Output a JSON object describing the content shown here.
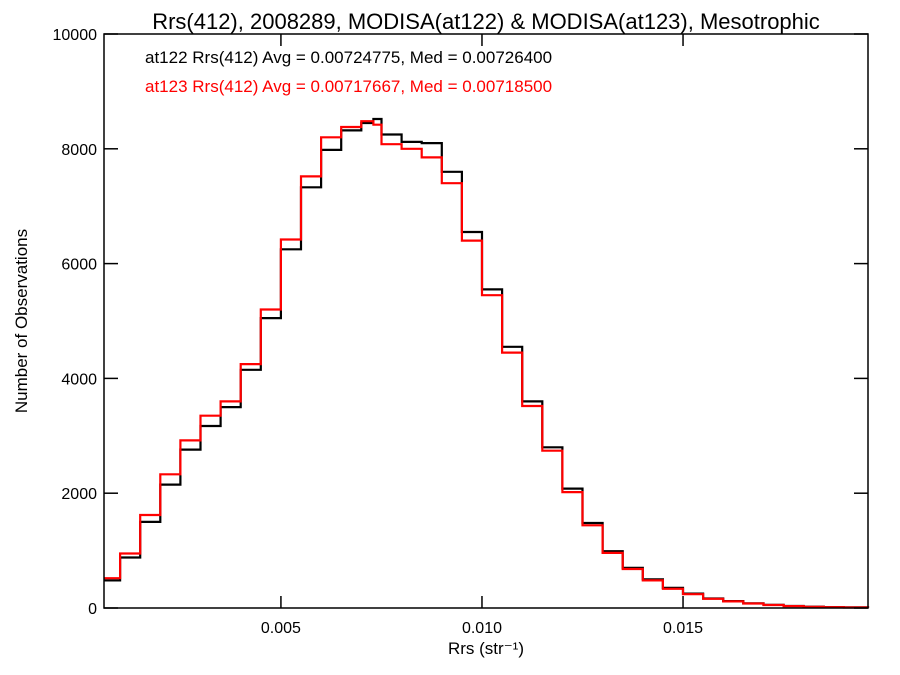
{
  "chart_data": {
    "type": "line",
    "title": "Rrs(412), 2008289, MODISA(at122) & MODISA(at123), Mesotrophic",
    "xlabel": "Rrs (str⁻¹)",
    "ylabel": "Number of Observations",
    "xlim": [
      0.0006,
      0.0196
    ],
    "ylim": [
      0,
      10000
    ],
    "xticks": [
      0.005,
      0.01,
      0.015
    ],
    "xtick_labels": [
      "0.005",
      "0.010",
      "0.015"
    ],
    "yticks": [
      0,
      2000,
      4000,
      6000,
      8000,
      10000
    ],
    "ytick_labels": [
      "0",
      "2000",
      "4000",
      "6000",
      "8000",
      "10000"
    ],
    "grid": false,
    "step": true,
    "annotations": [
      {
        "text": "at122 Rrs(412) Avg = 0.00724775, Med = 0.00726400",
        "color": "#000000"
      },
      {
        "text": "at123 Rrs(412) Avg = 0.00717667, Med = 0.00718500",
        "color": "#ff0000"
      }
    ],
    "series": [
      {
        "color": "#000000",
        "x": [
          0.0006,
          0.001,
          0.0015,
          0.002,
          0.0025,
          0.003,
          0.0035,
          0.004,
          0.0045,
          0.005,
          0.0055,
          0.006,
          0.0065,
          0.007,
          0.0073,
          0.0075,
          0.008,
          0.0085,
          0.009,
          0.0095,
          0.01,
          0.0105,
          0.011,
          0.0115,
          0.012,
          0.0125,
          0.013,
          0.0135,
          0.014,
          0.0145,
          0.015,
          0.0155,
          0.016,
          0.0165,
          0.017,
          0.0175,
          0.018,
          0.0185,
          0.019,
          0.0196
        ],
        "y": [
          480,
          880,
          1500,
          2150,
          2760,
          3170,
          3500,
          4150,
          5050,
          6250,
          7330,
          7980,
          8320,
          8450,
          8520,
          8250,
          8120,
          8100,
          7600,
          6550,
          5550,
          4550,
          3600,
          2800,
          2080,
          1480,
          990,
          700,
          500,
          350,
          250,
          165,
          120,
          80,
          55,
          35,
          22,
          15,
          10,
          5
        ]
      },
      {
        "color": "#ff0000",
        "x": [
          0.0006,
          0.001,
          0.0015,
          0.002,
          0.0025,
          0.003,
          0.0035,
          0.004,
          0.0045,
          0.005,
          0.0055,
          0.006,
          0.0065,
          0.007,
          0.0073,
          0.0075,
          0.008,
          0.0085,
          0.009,
          0.0095,
          0.01,
          0.0105,
          0.011,
          0.0115,
          0.012,
          0.0125,
          0.013,
          0.0135,
          0.014,
          0.0145,
          0.015,
          0.0155,
          0.016,
          0.0165,
          0.017,
          0.0175,
          0.018,
          0.0185,
          0.019,
          0.0196
        ],
        "y": [
          520,
          950,
          1620,
          2330,
          2920,
          3350,
          3600,
          4250,
          5200,
          6420,
          7520,
          8200,
          8380,
          8480,
          8420,
          8080,
          8000,
          7850,
          7400,
          6400,
          5450,
          4450,
          3520,
          2740,
          2020,
          1440,
          960,
          680,
          480,
          335,
          240,
          160,
          115,
          78,
          52,
          33,
          21,
          14,
          9,
          5
        ]
      }
    ]
  }
}
